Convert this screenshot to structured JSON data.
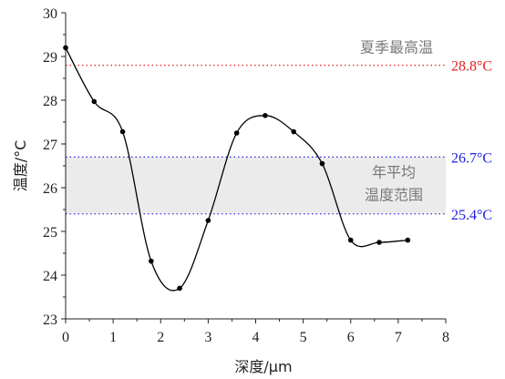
{
  "chart_data": {
    "type": "line",
    "title": "",
    "xlabel": "深度/μm",
    "ylabel": "温度/°C",
    "xlim": [
      0,
      8
    ],
    "ylim": [
      23,
      30
    ],
    "x_ticks": [
      "0",
      "1",
      "2",
      "3",
      "4",
      "5",
      "6",
      "7",
      "8"
    ],
    "y_ticks": [
      "23",
      "24",
      "25",
      "26",
      "27",
      "28",
      "29",
      "30"
    ],
    "series": [
      {
        "x": [
          0,
          0.6,
          1.2,
          1.8,
          2.4,
          3.0,
          3.6,
          4.2,
          4.8,
          5.4,
          6.0,
          6.6,
          7.2
        ],
        "y": [
          29.2,
          27.97,
          27.28,
          24.32,
          23.7,
          25.25,
          27.25,
          27.65,
          27.28,
          26.55,
          24.8,
          24.75,
          24.8
        ],
        "color": "#000000"
      }
    ],
    "reference_lines": [
      {
        "value": 28.8,
        "label": "28.8°C",
        "color": "#e02020",
        "note": "夏季最高温"
      },
      {
        "value": 26.7,
        "label": "26.7°C",
        "color": "#2020e0"
      },
      {
        "value": 25.4,
        "label": "25.4°C",
        "color": "#2020e0"
      }
    ],
    "band": {
      "from": 25.4,
      "to": 26.7,
      "color": "#ebebeb",
      "label_lines": [
        "年平均",
        "温度范围"
      ]
    },
    "grid": false,
    "legend": "none"
  }
}
